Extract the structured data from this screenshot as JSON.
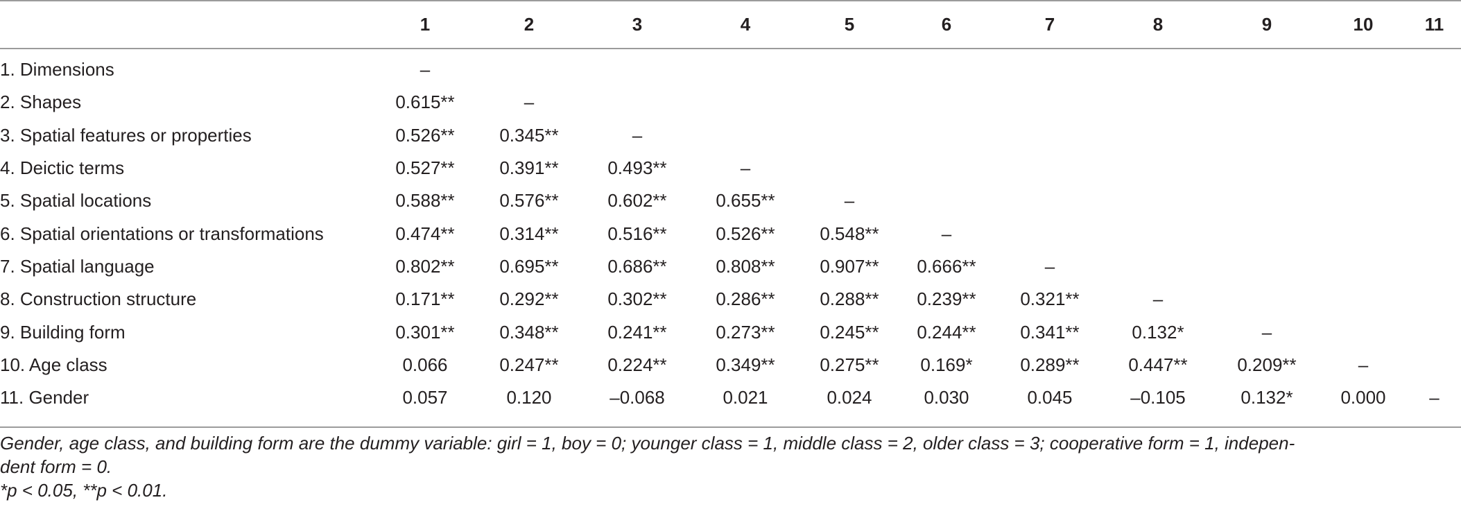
{
  "table": {
    "columns": [
      "",
      "1",
      "2",
      "3",
      "4",
      "5",
      "6",
      "7",
      "8",
      "9",
      "10",
      "11"
    ],
    "rows": [
      {
        "label": "1. Dimensions",
        "cells": [
          "–",
          "",
          "",
          "",
          "",
          "",
          "",
          "",
          "",
          "",
          ""
        ]
      },
      {
        "label": "2. Shapes",
        "cells": [
          "0.615**",
          "–",
          "",
          "",
          "",
          "",
          "",
          "",
          "",
          "",
          ""
        ]
      },
      {
        "label": "3. Spatial features or properties",
        "cells": [
          "0.526**",
          "0.345**",
          "–",
          "",
          "",
          "",
          "",
          "",
          "",
          "",
          ""
        ]
      },
      {
        "label": "4. Deictic terms",
        "cells": [
          "0.527**",
          "0.391**",
          "0.493**",
          "–",
          "",
          "",
          "",
          "",
          "",
          "",
          ""
        ]
      },
      {
        "label": "5. Spatial locations",
        "cells": [
          "0.588**",
          "0.576**",
          "0.602**",
          "0.655**",
          "–",
          "",
          "",
          "",
          "",
          "",
          ""
        ]
      },
      {
        "label": "6. Spatial orientations or transformations",
        "cells": [
          "0.474**",
          "0.314**",
          "0.516**",
          "0.526**",
          "0.548**",
          "–",
          "",
          "",
          "",
          "",
          ""
        ]
      },
      {
        "label": "7. Spatial language",
        "cells": [
          "0.802**",
          "0.695**",
          "0.686**",
          "0.808**",
          "0.907**",
          "0.666**",
          "–",
          "",
          "",
          "",
          ""
        ]
      },
      {
        "label": "8. Construction structure",
        "cells": [
          "0.171**",
          "0.292**",
          "0.302**",
          "0.286**",
          "0.288**",
          "0.239**",
          "0.321**",
          "–",
          "",
          "",
          ""
        ]
      },
      {
        "label": "9. Building form",
        "cells": [
          "0.301**",
          "0.348**",
          "0.241**",
          "0.273**",
          "0.245**",
          "0.244**",
          "0.341**",
          "0.132*",
          "–",
          "",
          ""
        ]
      },
      {
        "label": "10. Age class",
        "cells": [
          "0.066",
          "0.247**",
          "0.224**",
          "0.349**",
          "0.275**",
          "0.169*",
          "0.289**",
          "0.447**",
          "0.209**",
          "–",
          ""
        ]
      },
      {
        "label": "11. Gender",
        "cells": [
          "0.057",
          "0.120",
          "–0.068",
          "0.021",
          "0.024",
          "0.030",
          "0.045",
          "–0.105",
          "0.132*",
          "0.000",
          "–"
        ]
      }
    ]
  },
  "notes": {
    "line1": "Gender, age class, and building form are the dummy variable: girl = 1, boy = 0; younger class = 1, middle class = 2, older class = 3; cooperative form = 1, indepen-",
    "line2": "dent form = 0.",
    "line3": "*p < 0.05, **p < 0.01."
  }
}
